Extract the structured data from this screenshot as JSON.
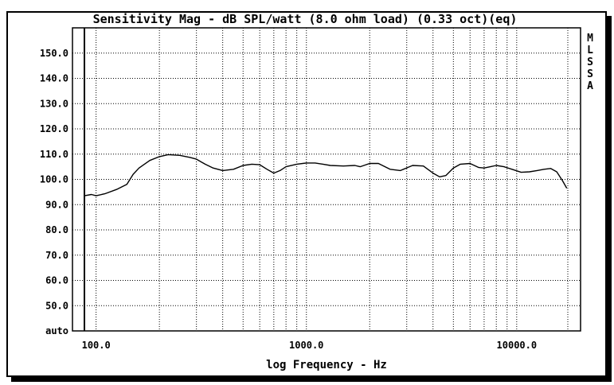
{
  "chart_data": {
    "type": "line",
    "title": "Sensitivity Mag - dB SPL/watt (8.0 ohm load) (0.33 oct)(eq)",
    "xlabel": "log Frequency - Hz",
    "ylabel": "",
    "x_scale": "log",
    "xlim": [
      88,
      17500
    ],
    "ylim": [
      40,
      160
    ],
    "y_ticks": [
      {
        "value": 150,
        "label": "150.0"
      },
      {
        "value": 140,
        "label": "140.0"
      },
      {
        "value": 130,
        "label": "130.0"
      },
      {
        "value": 120,
        "label": "120.0"
      },
      {
        "value": 110,
        "label": "110.0"
      },
      {
        "value": 100,
        "label": "100.0"
      },
      {
        "value": 90,
        "label": "90.0"
      },
      {
        "value": 80,
        "label": "80.0"
      },
      {
        "value": 70,
        "label": "70.0"
      },
      {
        "value": 60,
        "label": "60.0"
      },
      {
        "value": 50,
        "label": "50.0"
      },
      {
        "value": 40,
        "label": "auto"
      }
    ],
    "x_ticks": [
      {
        "value": 100,
        "label": "100.0"
      },
      {
        "value": 1000,
        "label": "1000.0"
      },
      {
        "value": 10000,
        "label": "10000.0"
      }
    ],
    "grid": true,
    "side_label": [
      "M",
      "L",
      "S",
      "S",
      "A"
    ],
    "series": [
      {
        "color": "#000000",
        "x": [
          88,
          95,
          100,
          110,
          125,
          140,
          150,
          160,
          180,
          200,
          220,
          250,
          280,
          300,
          330,
          360,
          400,
          450,
          500,
          550,
          600,
          650,
          700,
          750,
          800,
          900,
          1000,
          1100,
          1200,
          1300,
          1500,
          1700,
          1800,
          2000,
          2200,
          2500,
          2800,
          3200,
          3600,
          4000,
          4300,
          4600,
          5000,
          5400,
          6000,
          6600,
          7000,
          7500,
          8000,
          8700,
          9500,
          10500,
          11500,
          12500,
          13500,
          14500,
          15500,
          16500,
          17300
        ],
        "y": [
          93.5,
          94,
          93.5,
          94.3,
          96,
          98,
          102,
          104.5,
          107.5,
          109,
          109.8,
          109.5,
          108.7,
          108,
          106,
          104.5,
          103.5,
          104,
          105.5,
          106,
          105.8,
          104,
          102.5,
          103.5,
          105,
          106,
          106.5,
          106.5,
          106,
          105.5,
          105.3,
          105.5,
          105,
          106.3,
          106.3,
          104,
          103.5,
          105.5,
          105.3,
          102.5,
          101,
          101.5,
          104.5,
          106,
          106.3,
          104.7,
          104.5,
          105,
          105.5,
          105,
          104,
          102.8,
          103,
          103.5,
          104,
          104.3,
          103,
          99.5,
          96.5
        ]
      }
    ]
  }
}
